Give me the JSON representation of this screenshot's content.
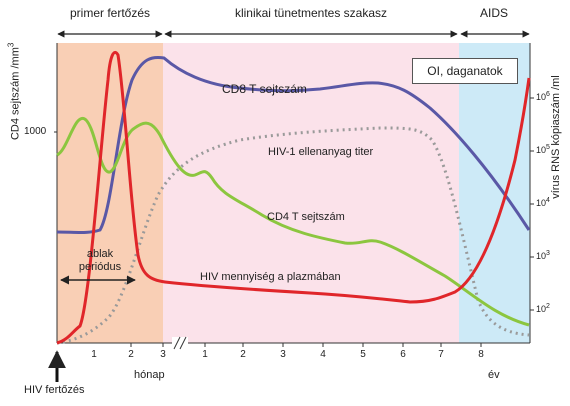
{
  "phases": {
    "primary": "primer fertőzés",
    "latent": "klinikai tünetmentes szakasz",
    "aids": "AIDS"
  },
  "y_left_title": "CD4 sejtszám /mm",
  "y_left_title_exp": "3",
  "y_left_tick": "1000",
  "y_right_title": "vírus RNS kópiaszám /ml",
  "y_right_ticks": [
    {
      "base": "10",
      "exp": "2"
    },
    {
      "base": "10",
      "exp": "3"
    },
    {
      "base": "10",
      "exp": "4"
    },
    {
      "base": "10",
      "exp": "5"
    },
    {
      "base": "10",
      "exp": "6"
    }
  ],
  "x_ticks_months": [
    "1",
    "2",
    "3"
  ],
  "x_ticks_years": [
    "1",
    "2",
    "3",
    "4",
    "5",
    "6",
    "7",
    "8"
  ],
  "x_unit_months": "hónap",
  "x_unit_years": "év",
  "annotations": {
    "oi_box": "OI, daganatok",
    "cd8": "CD8 T sejtszám",
    "antibody": "HIV-1 ellenanyag titer",
    "cd4": "CD4 T sejtszám",
    "viral": "HIV mennyiség a plazmában",
    "window_line1": "ablak",
    "window_line2": "periódus",
    "infection": "HIV fertőzés"
  },
  "colors": {
    "primary_bg": "#f9cfb5",
    "latent_bg": "#fbe2ea",
    "aids_bg": "#cdeaf7",
    "cd8": "#5a58a6",
    "cd4": "#8cc63f",
    "viral": "#e0262a",
    "antibody": "#9a9a9a"
  }
}
